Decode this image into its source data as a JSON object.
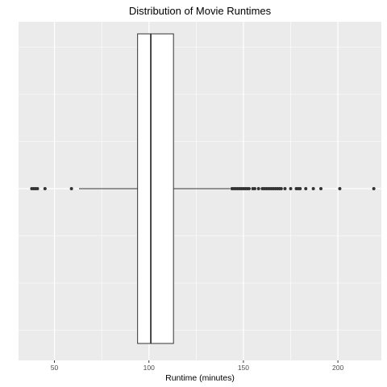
{
  "chart_data": {
    "type": "boxplot",
    "orientation": "horizontal",
    "title": "Distribution of Movie Runtimes",
    "xlabel": "Runtime (minutes)",
    "ylabel": "",
    "xlim": [
      31,
      223
    ],
    "x_ticks": [
      50,
      100,
      150,
      200
    ],
    "grid": true,
    "legend": "none",
    "box": {
      "whisker_low": 63,
      "q1": 94,
      "median": 101,
      "q3": 113,
      "whisker_high": 143
    },
    "outliers": [
      38,
      39,
      40,
      41,
      45,
      59,
      144,
      145,
      146,
      147,
      148,
      149,
      150,
      151,
      152,
      153,
      155,
      156,
      158,
      160,
      161,
      162,
      163,
      164,
      165,
      166,
      167,
      168,
      169,
      170,
      172,
      175,
      178,
      179,
      180,
      183,
      187,
      191,
      201,
      219
    ],
    "colors": {
      "panel_background": "#ebebeb",
      "grid_major": "#ffffff",
      "box_fill": "#ffffff",
      "box_line": "#333333",
      "point": "#333333"
    }
  }
}
